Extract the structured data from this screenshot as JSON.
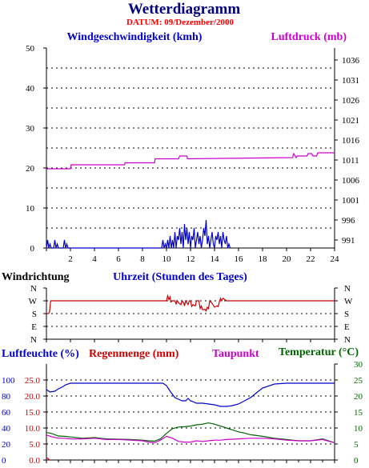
{
  "header": {
    "title": "Wetterdiagramm",
    "date_label": "DATUM: 09/Dezember/2000"
  },
  "colors": {
    "title": "#000080",
    "date": "#ff0000",
    "wind_speed": "#0000cc",
    "pressure": "#cc00cc",
    "wind_dir": "#cc0000",
    "humidity": "#0000cc",
    "rain": "#cc0000",
    "dewpoint": "#cc00cc",
    "temperature": "#006600"
  },
  "chart_data": [
    {
      "id": "wind-pressure",
      "type": "line",
      "y_left_label": "Windgeschwindigkeit (kmh)",
      "y_right_label": "Luftdruck (mb)",
      "xlim": [
        0,
        24
      ],
      "x_ticks": [
        "2",
        "4",
        "6",
        "8",
        "10",
        "12",
        "14",
        "16",
        "18",
        "20",
        "22",
        "24"
      ],
      "ylim_left": [
        0,
        50
      ],
      "y_left_ticks": [
        "0",
        "10",
        "20",
        "30",
        "40",
        "50"
      ],
      "ylim_right": [
        989,
        1039
      ],
      "y_right_ticks": [
        "991",
        "996",
        "1001",
        "1006",
        "1011",
        "1016",
        "1021",
        "1026",
        "1031",
        "1036"
      ],
      "grid": true,
      "series": [
        {
          "name": "Windgeschwindigkeit (kmh)",
          "axis": "left",
          "x": [
            0,
            0.1,
            0.2,
            0.3,
            0.4,
            0.6,
            0.7,
            0.8,
            0.9,
            1.0,
            1.4,
            1.5,
            1.6,
            1.7,
            1.8,
            2.0,
            9.6,
            9.7,
            9.8,
            9.9,
            10.0,
            10.1,
            10.2,
            10.3,
            10.4,
            10.5,
            10.6,
            10.7,
            10.8,
            10.9,
            11.0,
            11.1,
            11.2,
            11.3,
            11.4,
            11.5,
            11.6,
            11.7,
            11.8,
            11.9,
            12.0,
            12.1,
            12.2,
            12.3,
            12.4,
            12.5,
            12.6,
            12.7,
            12.8,
            12.9,
            13.0,
            13.1,
            13.2,
            13.3,
            13.4,
            13.5,
            13.6,
            13.7,
            13.8,
            13.9,
            14.0,
            14.1,
            14.2,
            14.3,
            14.4,
            14.5,
            14.6,
            14.7,
            14.8,
            14.9,
            15.0,
            15.1,
            15.2,
            15.3
          ],
          "y": [
            0,
            2,
            0,
            1,
            0,
            0,
            2,
            0,
            1,
            0,
            0,
            2,
            0,
            1,
            0,
            0,
            0,
            2,
            0,
            1,
            0,
            2,
            0,
            3,
            0,
            2,
            0,
            4,
            0,
            3,
            2,
            5,
            1,
            4,
            0,
            6,
            2,
            5,
            1,
            4,
            0,
            3,
            2,
            5,
            0,
            2,
            4,
            1,
            3,
            0,
            2,
            5,
            3,
            7,
            1,
            3,
            0,
            2,
            4,
            1,
            0,
            3,
            2,
            4,
            1,
            3,
            0,
            4,
            2,
            1,
            3,
            0,
            1,
            0
          ]
        },
        {
          "name": "Luftdruck (mb)",
          "axis": "right",
          "x": [
            0,
            2.0,
            2.05,
            6.5,
            6.55,
            9.0,
            9.05,
            11.0,
            11.1,
            11.7,
            11.75,
            20.5,
            20.6,
            20.8,
            20.9,
            21.7,
            21.8,
            22.1,
            22.2,
            22.5,
            22.6,
            24
          ],
          "y": [
            1008.8,
            1008.8,
            1009.8,
            1009.8,
            1010.3,
            1010.3,
            1011.3,
            1011.3,
            1012.0,
            1012.0,
            1011.3,
            1011.6,
            1012.6,
            1011.6,
            1012.0,
            1012.0,
            1012.6,
            1012.6,
            1012.0,
            1012.0,
            1012.8,
            1012.8
          ]
        }
      ]
    },
    {
      "id": "wind-direction",
      "type": "line",
      "title_left": "Windrichtung",
      "xlabel": "Uhrzeit (Stunden des Tages)",
      "xlim": [
        0,
        24
      ],
      "y_categories": [
        "N",
        "W",
        "S",
        "E",
        "N"
      ],
      "ylim": [
        0,
        4
      ],
      "grid": true,
      "series": [
        {
          "name": "Windrichtung",
          "x": [
            0,
            0.15,
            0.25,
            0.3,
            0.35,
            0.4,
            10.0,
            10.05,
            10.1,
            10.2,
            10.3,
            10.35,
            10.5,
            10.7,
            10.8,
            10.9,
            11.0,
            11.2,
            11.3,
            11.45,
            11.5,
            11.6,
            11.7,
            11.8,
            11.9,
            12.0,
            12.1,
            12.2,
            12.4,
            12.5,
            12.7,
            12.8,
            12.9,
            13.0,
            13.1,
            13.2,
            13.3,
            13.4,
            13.5,
            13.6,
            13.8,
            14.0,
            14.2,
            14.3,
            14.4,
            14.5,
            14.6,
            14.7,
            15.0,
            24
          ],
          "y": [
            2,
            2,
            2.1,
            2.5,
            3,
            3,
            3,
            3.2,
            3.4,
            3.1,
            3.3,
            2.9,
            3,
            3,
            2.75,
            3,
            2.85,
            2.7,
            3,
            2.8,
            2.6,
            3,
            2.85,
            2.7,
            3,
            3,
            2.55,
            2.7,
            2.6,
            3,
            3,
            2.4,
            2.6,
            2.3,
            2.3,
            2.35,
            2.2,
            2.5,
            2.4,
            3,
            2.8,
            2.5,
            2.6,
            2.55,
            2.9,
            3.2,
            3,
            3.2,
            3,
            3
          ]
        }
      ]
    },
    {
      "id": "humidity-rain-temp",
      "type": "line",
      "label_humidity": "Luftfeuchte (%)",
      "label_rain": "Regenmenge (mm)",
      "label_dewpoint": "Taupunkt",
      "label_temperature": "Temperatur (°C)",
      "xlim": [
        0,
        24
      ],
      "ylim_humidity": [
        0,
        120
      ],
      "humidity_ticks": [
        "0",
        "20",
        "40",
        "60",
        "80",
        "100"
      ],
      "ylim_rain": [
        0,
        30
      ],
      "rain_ticks": [
        "0.0",
        "5.0",
        "10.0",
        "15.0",
        "20.0",
        "25.0"
      ],
      "ylim_temperature": [
        0,
        30
      ],
      "temperature_ticks": [
        "0",
        "5",
        "10",
        "15",
        "20",
        "25",
        "30"
      ],
      "grid": true,
      "series": [
        {
          "name": "Luftfeuchte (%)",
          "axis": "humidity",
          "x": [
            0,
            0.3,
            0.7,
            1.0,
            1.3,
            1.6,
            2.0,
            3.0,
            5.0,
            8.0,
            9.5,
            9.7,
            10.0,
            10.3,
            10.5,
            10.7,
            11.0,
            11.3,
            11.6,
            11.8,
            12.0,
            12.2,
            12.5,
            13.0,
            13.5,
            14.0,
            14.5,
            15.0,
            15.5,
            16.0,
            16.5,
            17.0,
            17.5,
            18.0,
            19.0,
            20.0,
            22.0,
            24
          ],
          "y": [
            88,
            85,
            86,
            89,
            91,
            94,
            96,
            96,
            96,
            96,
            96,
            96,
            93,
            86,
            82,
            78,
            76,
            74,
            74,
            77,
            74,
            73,
            71,
            71,
            70,
            69,
            67,
            67,
            68,
            70,
            74,
            78,
            84,
            90,
            95,
            96,
            96,
            96
          ]
        },
        {
          "name": "Regenmenge (mm)",
          "axis": "rain",
          "x": [
            0,
            0.1,
            0.2,
            0.3
          ],
          "y": [
            0.6,
            0.6,
            0.2,
            0.0
          ]
        },
        {
          "name": "Temperatur (°C)",
          "axis": "temperature",
          "x": [
            0,
            0.5,
            1.0,
            1.5,
            2.0,
            3.0,
            4.0,
            5.0,
            6.0,
            7.0,
            8.0,
            8.5,
            9.0,
            9.5,
            10.0,
            10.5,
            11.0,
            11.5,
            12.0,
            12.5,
            13.0,
            13.5,
            14.0,
            14.5,
            15.0,
            15.5,
            16.0,
            16.5,
            17.0,
            18.0,
            19.0,
            20.0,
            21.0,
            22.0,
            23.0,
            23.5,
            24
          ],
          "y": [
            8.6,
            8.2,
            7.5,
            7.4,
            7.2,
            6.8,
            7.0,
            6.6,
            6.5,
            6.4,
            6.2,
            6.0,
            5.9,
            6.6,
            8.3,
            9.8,
            10.3,
            10.4,
            10.6,
            11.0,
            11.2,
            11.6,
            11.2,
            10.6,
            10.0,
            9.4,
            8.8,
            8.4,
            7.9,
            7.4,
            6.8,
            6.4,
            6.0,
            6.0,
            6.6,
            6.0,
            5.4
          ]
        },
        {
          "name": "Taupunkt",
          "axis": "temperature",
          "x": [
            0,
            0.5,
            1.0,
            1.5,
            2.0,
            3.0,
            4.0,
            5.0,
            6.0,
            7.0,
            8.0,
            8.5,
            9.0,
            9.5,
            10.0,
            10.5,
            11.0,
            11.5,
            12.0,
            12.5,
            13.0,
            13.5,
            14.0,
            14.5,
            15.0,
            16.0,
            17.0,
            18.0,
            19.0,
            20.0,
            21.0,
            22.0,
            23.0,
            24
          ],
          "y": [
            7.8,
            7.2,
            6.8,
            6.8,
            6.6,
            6.6,
            6.8,
            6.4,
            6.4,
            6.2,
            6.0,
            5.6,
            5.4,
            6.2,
            7.4,
            6.8,
            5.8,
            5.6,
            5.6,
            6.0,
            5.8,
            6.0,
            6.2,
            6.2,
            6.4,
            6.6,
            6.8,
            6.8,
            6.6,
            6.2,
            6.0,
            6.0,
            6.4,
            5.4
          ]
        }
      ]
    }
  ]
}
